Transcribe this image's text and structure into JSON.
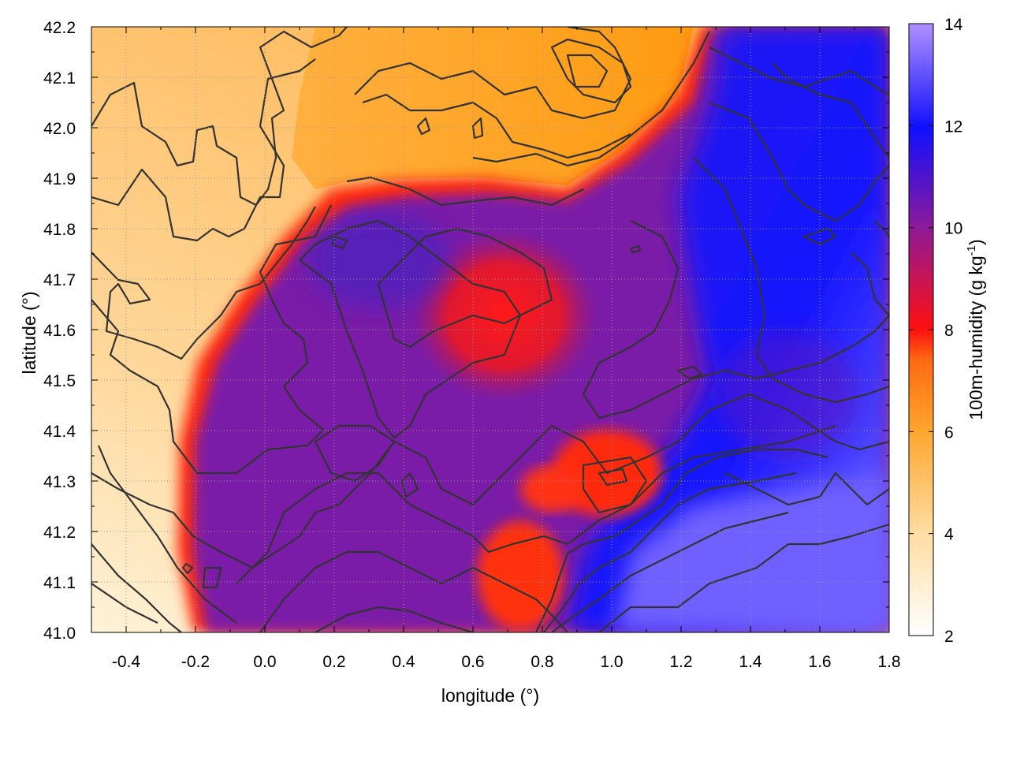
{
  "chart_data": {
    "type": "heatmap",
    "xlabel": "longitude (°)",
    "ylabel": "latitude (°)",
    "xlim": [
      -0.5,
      1.8
    ],
    "ylim": [
      41.0,
      42.2
    ],
    "xticks": [
      -0.4,
      -0.2,
      0.0,
      0.2,
      0.4,
      0.6,
      0.8,
      1.0,
      1.2,
      1.4,
      1.6,
      1.8
    ],
    "xtick_labels": [
      "-0.4",
      "-0.2",
      "0.0",
      "0.2",
      "0.4",
      "0.6",
      "0.8",
      "1.0",
      "1.2",
      "1.4",
      "1.6",
      "1.8"
    ],
    "yticks": [
      41.0,
      41.1,
      41.2,
      41.3,
      41.4,
      41.5,
      41.6,
      41.7,
      41.8,
      41.9,
      42.0,
      42.1,
      42.2
    ],
    "ytick_labels": [
      "41.0",
      "41.1",
      "41.2",
      "41.3",
      "41.4",
      "41.5",
      "41.6",
      "41.7",
      "41.8",
      "41.9",
      "42.0",
      "42.1",
      "42.2"
    ],
    "grid": true,
    "colorbar": {
      "label": "100m-humidity (g kg-1)",
      "label_base": "100m-humidity (g kg",
      "label_sup": "-1",
      "label_close": ")",
      "range": [
        2,
        14
      ],
      "ticks": [
        2,
        4,
        6,
        8,
        10,
        12,
        14
      ],
      "tick_labels": [
        "2",
        "4",
        "6",
        "8",
        "10",
        "12",
        "14"
      ],
      "colormap": [
        "#ffffff",
        "#ffdfa8",
        "#ffae40",
        "#ff8a00",
        "#ff1010",
        "#8a1a9a",
        "#1010ff",
        "#a888ff"
      ]
    },
    "contour_color": "#333333"
  }
}
